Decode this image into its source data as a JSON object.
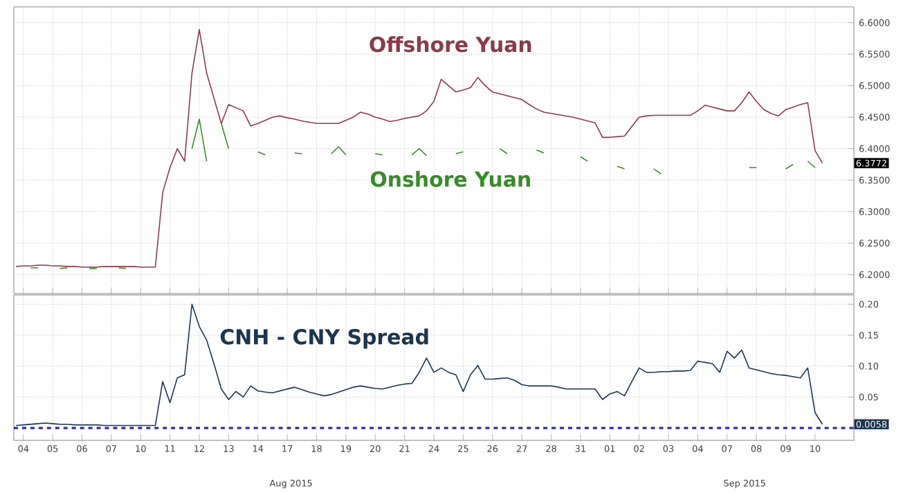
{
  "chart_data": [
    {
      "type": "line",
      "ylim": [
        6.17,
        6.625
      ],
      "grid": true,
      "tick_labels": "y",
      "yticks": [
        {
          "value": 6.2,
          "label": "6.2000"
        },
        {
          "value": 6.25,
          "label": "6.2500"
        },
        {
          "value": 6.3,
          "label": "6.3000"
        },
        {
          "value": 6.35,
          "label": "6.3500"
        },
        {
          "value": 6.4,
          "label": "6.4000"
        },
        {
          "value": 6.45,
          "label": "6.4500"
        },
        {
          "value": 6.5,
          "label": "6.5000"
        },
        {
          "value": 6.55,
          "label": "6.5500"
        },
        {
          "value": 6.6,
          "label": "6.6000"
        }
      ],
      "categories": [
        null,
        null,
        null,
        null,
        null,
        null,
        null,
        null,
        null,
        null,
        null,
        null,
        null,
        null,
        null,
        null,
        null,
        null,
        null,
        null,
        null,
        null,
        null,
        null,
        null,
        null,
        null,
        null,
        null,
        null,
        null,
        null,
        null,
        null,
        null,
        null,
        null,
        null,
        null,
        null,
        null,
        null,
        null,
        null,
        null,
        null,
        null,
        null,
        null,
        null,
        null,
        null,
        null,
        null,
        null,
        null,
        null,
        null,
        null,
        null,
        null,
        null,
        null,
        null,
        null,
        null,
        null,
        null,
        null,
        null,
        null,
        null,
        null,
        null,
        null,
        null,
        null,
        null,
        null,
        null,
        null,
        null,
        null,
        null,
        null,
        null,
        null,
        null,
        null,
        null,
        null,
        null,
        null,
        null,
        null,
        null,
        null,
        null,
        null,
        null,
        null,
        null,
        null,
        null,
        null,
        null,
        null,
        null,
        null,
        null,
        null,
        null,
        null,
        null,
        null
      ],
      "annotations": [
        "6.3772"
      ],
      "series": [
        {
          "name": "Offshore Yuan",
          "color": "#8b3a4a",
          "values": [
            6.213,
            6.214,
            6.214,
            6.215,
            6.215,
            6.214,
            6.214,
            6.213,
            6.213,
            6.212,
            6.212,
            6.212,
            6.213,
            6.213,
            6.213,
            6.213,
            6.213,
            6.212,
            6.212,
            6.212,
            6.33,
            6.37,
            6.4,
            6.38,
            6.52,
            6.589,
            6.52,
            6.48,
            6.44,
            6.47,
            6.465,
            6.46,
            6.436,
            6.44,
            6.445,
            6.45,
            6.452,
            6.449,
            6.447,
            6.444,
            6.442,
            6.44,
            6.44,
            6.44,
            6.44,
            6.445,
            6.45,
            6.458,
            6.455,
            6.45,
            6.447,
            6.443,
            6.445,
            6.448,
            6.45,
            6.452,
            6.46,
            6.475,
            6.51,
            6.5,
            6.49,
            6.493,
            6.497,
            6.513,
            6.5,
            6.49,
            6.487,
            6.484,
            6.481,
            6.478,
            6.47,
            6.463,
            6.458,
            6.456,
            6.454,
            6.452,
            6.45,
            6.447,
            6.444,
            6.441,
            6.418,
            6.418,
            6.419,
            6.42,
            6.435,
            6.45,
            6.452,
            6.453,
            6.453,
            6.453,
            6.453,
            6.453,
            6.453,
            6.46,
            6.469,
            6.466,
            6.463,
            6.46,
            6.46,
            6.473,
            6.49,
            6.475,
            6.462,
            6.456,
            6.452,
            6.462,
            6.466,
            6.47,
            6.473,
            6.397,
            6.377,
            null,
            null,
            null,
            null
          ]
        },
        {
          "name": "Onshore Yuan",
          "color": "#3a8a2a",
          "values": [
            null,
            null,
            6.211,
            6.211,
            null,
            null,
            6.21,
            6.211,
            null,
            null,
            6.21,
            6.21,
            null,
            null,
            6.211,
            6.21,
            null,
            null,
            null,
            null,
            null,
            null,
            null,
            null,
            6.4,
            6.447,
            6.38,
            null,
            6.44,
            6.4,
            null,
            null,
            null,
            6.395,
            6.39,
            null,
            null,
            null,
            6.393,
            6.392,
            null,
            null,
            null,
            6.392,
            6.403,
            6.39,
            null,
            null,
            null,
            6.392,
            6.39,
            null,
            null,
            null,
            6.39,
            6.4,
            6.389,
            null,
            null,
            null,
            6.392,
            6.395,
            null,
            null,
            null,
            null,
            6.4,
            6.392,
            null,
            null,
            null,
            6.398,
            6.393,
            null,
            null,
            null,
            null,
            6.387,
            6.38,
            null,
            null,
            null,
            6.372,
            6.368,
            null,
            null,
            null,
            6.368,
            6.36,
            null,
            null,
            null,
            null,
            null,
            null,
            null,
            null,
            null,
            null,
            null,
            6.37,
            6.37,
            null,
            null,
            null,
            6.368,
            6.375,
            null,
            6.38,
            6.37,
            null,
            null,
            null,
            null,
            null
          ]
        }
      ]
    },
    {
      "type": "line",
      "ylim": [
        -0.02,
        0.215
      ],
      "grid": true,
      "yticks": [
        {
          "value": 0.05,
          "label": "0.05"
        },
        {
          "value": 0.1,
          "label": "0.10"
        },
        {
          "value": 0.15,
          "label": "0.15"
        },
        {
          "value": 0.2,
          "label": "0.20"
        }
      ],
      "categories": [
        null,
        "04",
        null,
        null,
        null,
        "05",
        null,
        null,
        null,
        "06",
        null,
        null,
        null,
        "07",
        null,
        null,
        null,
        "10",
        null,
        null,
        null,
        "11",
        null,
        null,
        null,
        "12",
        null,
        null,
        null,
        "13",
        null,
        null,
        null,
        "14",
        null,
        null,
        null,
        "17",
        null,
        null,
        null,
        "18",
        null,
        null,
        null,
        "19",
        null,
        null,
        null,
        "20",
        null,
        null,
        null,
        "21",
        null,
        null,
        null,
        "24",
        null,
        null,
        null,
        "25",
        null,
        null,
        null,
        "26",
        null,
        null,
        null,
        "27",
        null,
        null,
        null,
        "28",
        null,
        null,
        null,
        "31",
        null,
        null,
        null,
        "01",
        null,
        null,
        null,
        "02",
        null,
        null,
        null,
        "03",
        null,
        null,
        null,
        "04",
        null,
        null,
        null,
        "07",
        null,
        null,
        null,
        "08",
        null,
        null,
        null,
        "09",
        null,
        null,
        null,
        "10",
        null,
        null,
        null,
        null,
        null
      ],
      "annotations": [
        "Aug 2015",
        "Sep 2015",
        "0.0058"
      ],
      "ref_lines": [
        {
          "axis": "y",
          "value": 0,
          "color": "#2b2bb0",
          "line_style": "dashed"
        }
      ],
      "series": [
        {
          "name": "CNH - CNY Spread",
          "color": "#1c3550",
          "values": [
            0.004,
            0.005,
            0.006,
            0.007,
            0.008,
            0.007,
            0.006,
            0.006,
            0.005,
            0.005,
            0.005,
            0.005,
            0.004,
            0.004,
            0.004,
            0.004,
            0.004,
            0.004,
            0.004,
            0.004,
            0.075,
            0.041,
            0.081,
            0.086,
            0.2,
            0.164,
            0.142,
            0.104,
            0.063,
            0.046,
            0.059,
            0.05,
            0.068,
            0.06,
            0.058,
            0.057,
            0.06,
            0.063,
            0.066,
            0.062,
            0.058,
            0.055,
            0.052,
            0.054,
            0.058,
            0.062,
            0.066,
            0.068,
            0.066,
            0.064,
            0.063,
            0.066,
            0.069,
            0.071,
            0.072,
            0.09,
            0.113,
            0.09,
            0.097,
            0.09,
            0.086,
            0.059,
            0.086,
            0.101,
            0.079,
            0.079,
            0.08,
            0.081,
            0.077,
            0.07,
            0.068,
            0.068,
            0.068,
            0.068,
            0.066,
            0.063,
            0.063,
            0.063,
            0.063,
            0.063,
            0.046,
            0.055,
            0.059,
            0.052,
            0.075,
            0.097,
            0.09,
            0.09,
            0.091,
            0.091,
            0.092,
            0.092,
            0.093,
            0.108,
            0.106,
            0.104,
            0.09,
            0.124,
            0.113,
            0.126,
            0.097,
            0.094,
            0.091,
            0.088,
            0.086,
            0.085,
            0.083,
            0.081,
            0.097,
            0.025,
            0.006,
            null,
            null,
            null,
            null
          ]
        }
      ]
    }
  ]
}
